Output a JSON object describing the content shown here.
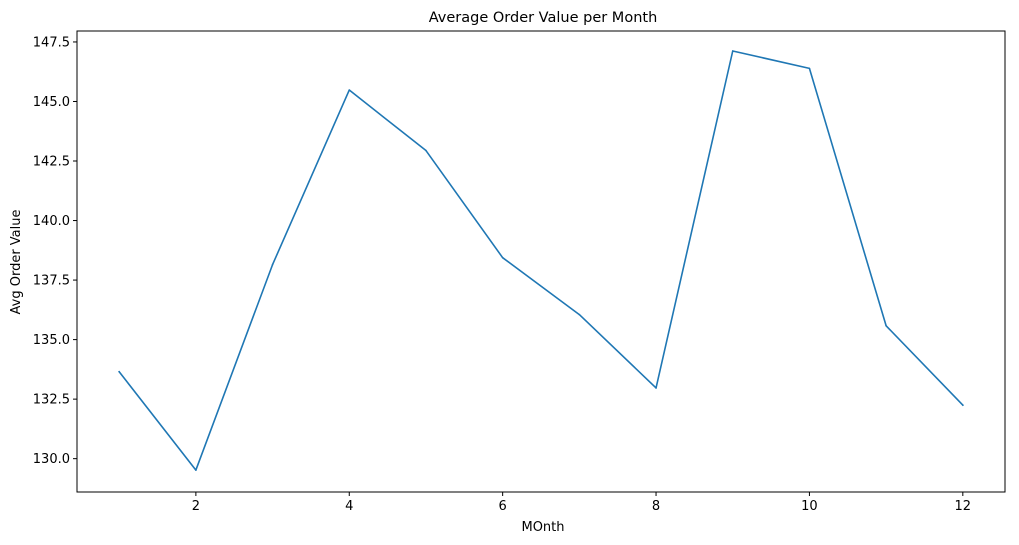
{
  "chart_data": {
    "type": "line",
    "title": "Average Order Value per Month",
    "xlabel": "MOnth",
    "ylabel": "Avg Order Value",
    "x": [
      1,
      2,
      3,
      4,
      5,
      6,
      7,
      8,
      9,
      10,
      11,
      12
    ],
    "series": [
      {
        "values": [
          133.65,
          129.52,
          138.15,
          145.48,
          142.94,
          138.44,
          136.05,
          132.97,
          147.12,
          146.39,
          135.58,
          132.25
        ],
        "color": "#1f77b4"
      }
    ],
    "xlim": [
      0.45,
      12.55
    ],
    "ylim": [
      128.6,
      147.96
    ],
    "xticks": [
      2,
      4,
      6,
      8,
      10,
      12
    ],
    "xtick_labels": [
      "2",
      "4",
      "6",
      "8",
      "10",
      "12"
    ],
    "yticks": [
      130.0,
      132.5,
      135.0,
      137.5,
      140.0,
      142.5,
      145.0,
      147.5
    ],
    "ytick_labels": [
      "130.0",
      "132.5",
      "135.0",
      "137.5",
      "140.0",
      "142.5",
      "145.0",
      "147.5"
    ],
    "grid": false,
    "legend": false
  }
}
